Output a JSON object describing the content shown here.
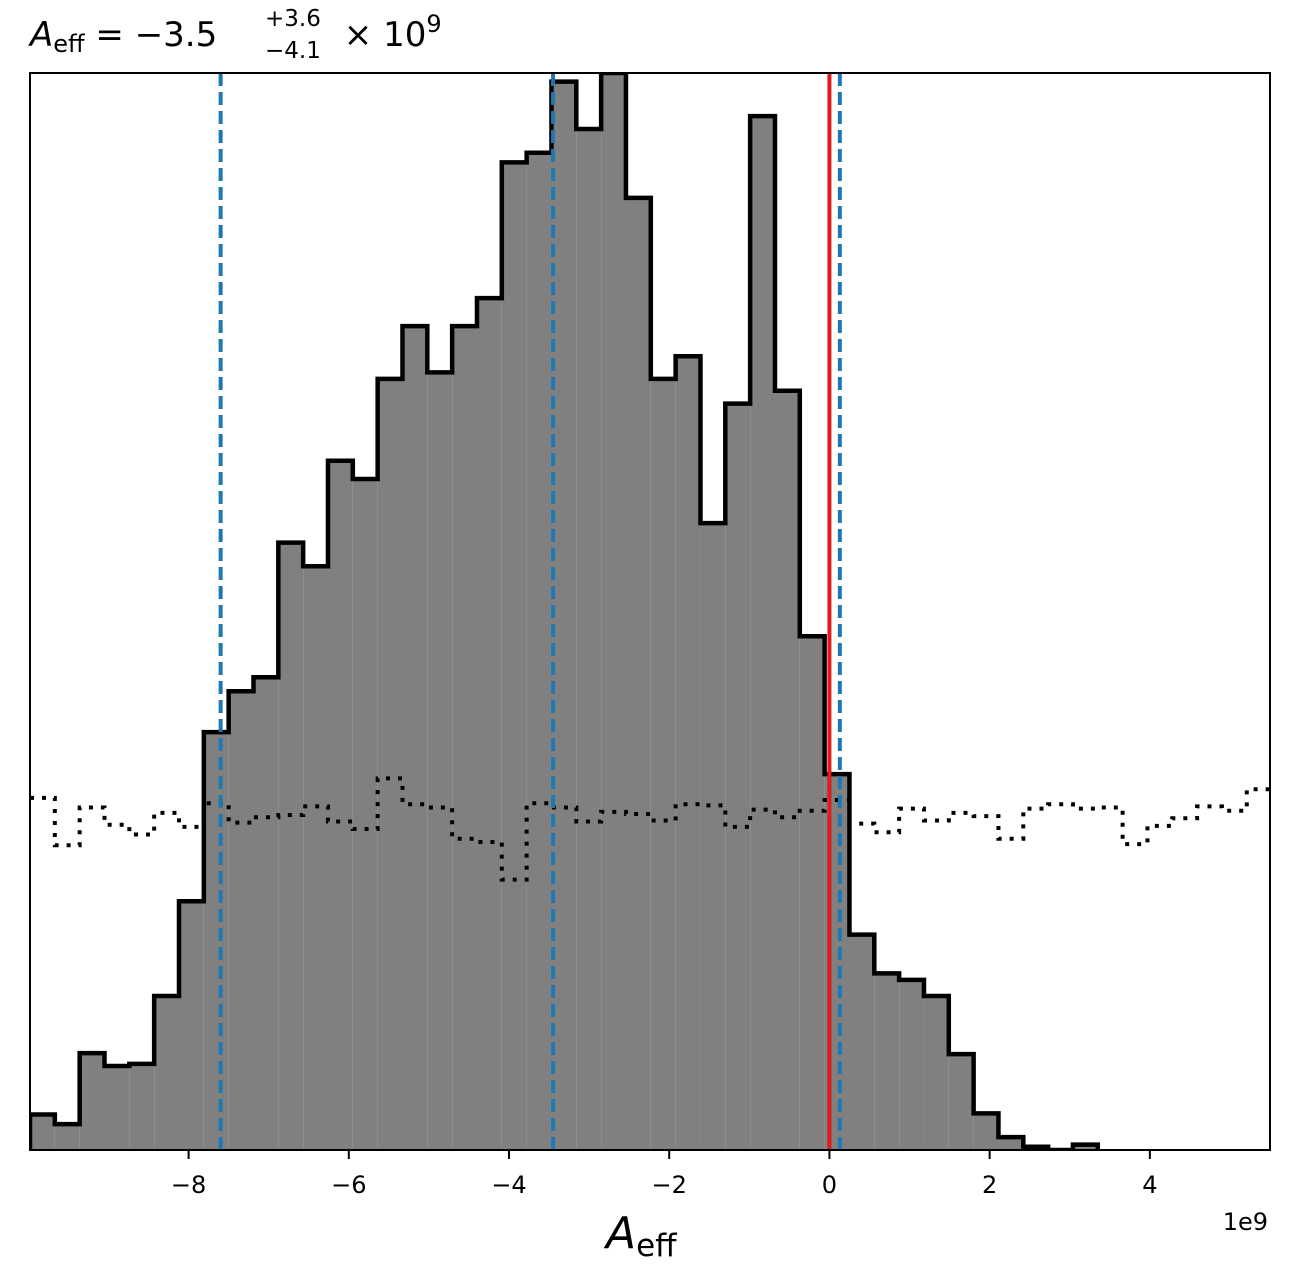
{
  "chart_data": {
    "type": "histogram",
    "title": {
      "symbol": "A",
      "subscript": "eff",
      "equals": " = ",
      "median": "−3.5",
      "upper": "+3.6",
      "lower": "−4.1",
      "times": " × 10",
      "exponent": "9"
    },
    "xlabel": {
      "symbol": "A",
      "subscript": "eff"
    },
    "offset_text": "1e9",
    "xlim": [
      -9.98,
      5.5
    ],
    "ylim": [
      0,
      1
    ],
    "x_scale": 1000000000.0,
    "xticks": [
      {
        "value": -8,
        "label": "−8"
      },
      {
        "value": -6,
        "label": "−6"
      },
      {
        "value": -4,
        "label": "−4"
      },
      {
        "value": -2,
        "label": "−2"
      },
      {
        "value": 0,
        "label": "0"
      },
      {
        "value": 2,
        "label": "2"
      },
      {
        "value": 4,
        "label": "4"
      }
    ],
    "posterior": {
      "bin_edges": [
        -9.98,
        -9.67,
        -9.36,
        -9.05,
        -8.74,
        -8.43,
        -8.12,
        -7.81,
        -7.5,
        -7.19,
        -6.88,
        -6.57,
        -6.26,
        -5.95,
        -5.64,
        -5.33,
        -5.02,
        -4.71,
        -4.4,
        -4.09,
        -3.78,
        -3.47,
        -3.16,
        -2.85,
        -2.54,
        -2.23,
        -1.92,
        -1.61,
        -1.3,
        -0.99,
        -0.68,
        -0.37,
        -0.06,
        0.25,
        0.56,
        0.87,
        1.18,
        1.49,
        1.8,
        2.11,
        2.42,
        2.73,
        3.04,
        3.35
      ],
      "heights": [
        0.033,
        0.024,
        0.09,
        0.078,
        0.08,
        0.143,
        0.231,
        0.388,
        0.426,
        0.439,
        0.564,
        0.542,
        0.64,
        0.623,
        0.716,
        0.765,
        0.722,
        0.765,
        0.791,
        0.917,
        0.926,
        0.992,
        0.948,
        1.0,
        0.884,
        0.716,
        0.737,
        0.582,
        0.693,
        0.96,
        0.705,
        0.477,
        0.349,
        0.2,
        0.164,
        0.158,
        0.143,
        0.089,
        0.034,
        0.012,
        0.003,
        0.0,
        0.005
      ],
      "fill": "#808080",
      "edge": "#000000"
    },
    "prior": {
      "bin_edges": [
        -9.98,
        -9.67,
        -9.36,
        -9.05,
        -8.74,
        -8.43,
        -8.12,
        -7.81,
        -7.5,
        -7.19,
        -6.88,
        -6.57,
        -6.26,
        -5.95,
        -5.64,
        -5.33,
        -5.02,
        -4.71,
        -4.4,
        -4.09,
        -3.78,
        -3.47,
        -3.16,
        -2.85,
        -2.54,
        -2.23,
        -1.92,
        -1.61,
        -1.3,
        -0.99,
        -0.68,
        -0.37,
        -0.06,
        0.25,
        0.56,
        0.87,
        1.18,
        1.49,
        1.8,
        2.11,
        2.42,
        2.73,
        3.04,
        3.35,
        3.66,
        3.97,
        4.28,
        4.59,
        4.9,
        5.21,
        5.5
      ],
      "heights": [
        0.327,
        0.283,
        0.318,
        0.302,
        0.293,
        0.313,
        0.3,
        0.322,
        0.304,
        0.309,
        0.311,
        0.319,
        0.305,
        0.298,
        0.345,
        0.321,
        0.318,
        0.289,
        0.286,
        0.251,
        0.322,
        0.318,
        0.305,
        0.314,
        0.312,
        0.306,
        0.321,
        0.32,
        0.3,
        0.316,
        0.309,
        0.315,
        0.325,
        0.303,
        0.295,
        0.317,
        0.306,
        0.313,
        0.31,
        0.289,
        0.317,
        0.321,
        0.317,
        0.318,
        0.284,
        0.301,
        0.308,
        0.319,
        0.315,
        0.335
      ],
      "edge": "#000000",
      "style": "dotted"
    },
    "quantile_lines": {
      "values": [
        -7.6,
        -3.45,
        0.13
      ],
      "color": "#1f77b4",
      "style": "dashed"
    },
    "truth_line": {
      "value": 0.0,
      "color": "#e41a1c",
      "style": "solid"
    }
  }
}
